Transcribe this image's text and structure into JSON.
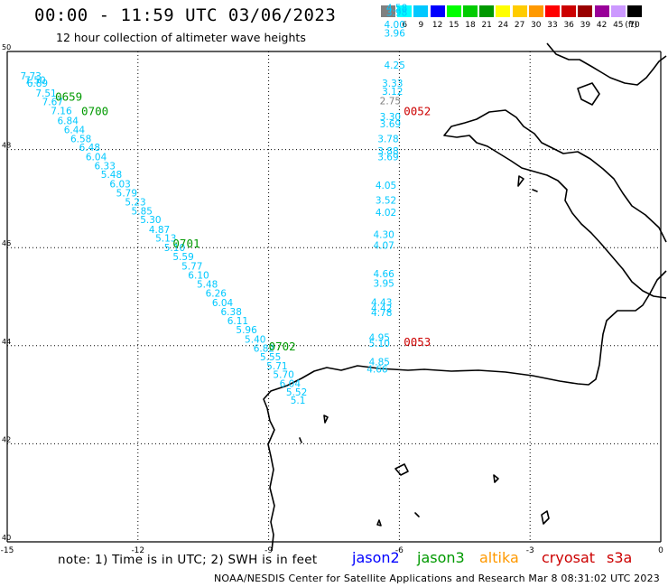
{
  "title": "00:00 - 11:59 UTC 03/06/2023",
  "subtitle": "12 hour collection of altimeter wave heights",
  "legend": {
    "unit": "(ft)",
    "bins": [
      {
        "label": "3",
        "color": "#808080"
      },
      {
        "label": "6",
        "color": "#00ffff"
      },
      {
        "label": "9",
        "color": "#00c8ff"
      },
      {
        "label": "12",
        "color": "#0000ff"
      },
      {
        "label": "15",
        "color": "#00ff00"
      },
      {
        "label": "18",
        "color": "#00cc00"
      },
      {
        "label": "21",
        "color": "#009900"
      },
      {
        "label": "24",
        "color": "#ffff00"
      },
      {
        "label": "27",
        "color": "#ffcc00"
      },
      {
        "label": "30",
        "color": "#ff9900"
      },
      {
        "label": "33",
        "color": "#ff0000"
      },
      {
        "label": "36",
        "color": "#cc0000"
      },
      {
        "label": "39",
        "color": "#990000"
      },
      {
        "label": "42",
        "color": "#990099"
      },
      {
        "label": "45",
        "color": "#cc99ff"
      },
      {
        "label": "70",
        "color": "#000000"
      }
    ]
  },
  "axes": {
    "lon_ticks": [
      "-15",
      "-12",
      "-9",
      "-6",
      "-3",
      "0"
    ],
    "lat_ticks": [
      "50",
      "48",
      "46",
      "44",
      "42",
      "40"
    ],
    "lon_range": [
      -15,
      0
    ],
    "lat_range": [
      40,
      50
    ],
    "grid": true
  },
  "tracks": [
    {
      "satellite": "jason3",
      "times": [
        {
          "label": "0659",
          "lon": -13.9,
          "lat": 49.0
        },
        {
          "label": "0700",
          "lon": -13.3,
          "lat": 48.7
        },
        {
          "label": "0701",
          "lon": -11.2,
          "lat": 46.0
        },
        {
          "label": "0702",
          "lon": -9.0,
          "lat": 43.9
        }
      ],
      "points": [
        {
          "lon": -14.7,
          "lat": 49.43,
          "v": "7.73"
        },
        {
          "lon": -14.6,
          "lat": 49.35,
          "v": "7.50"
        },
        {
          "lon": -14.55,
          "lat": 49.28,
          "v": "6.89"
        },
        {
          "lon": -14.35,
          "lat": 49.08,
          "v": "7.51"
        },
        {
          "lon": -14.2,
          "lat": 48.9,
          "v": "7.67"
        },
        {
          "lon": -14.0,
          "lat": 48.72,
          "v": "7.16"
        },
        {
          "lon": -13.85,
          "lat": 48.52,
          "v": "6.84"
        },
        {
          "lon": -13.7,
          "lat": 48.33,
          "v": "6.44"
        },
        {
          "lon": -13.55,
          "lat": 48.15,
          "v": "6.58"
        },
        {
          "lon": -13.35,
          "lat": 47.97,
          "v": "6.48"
        },
        {
          "lon": -13.2,
          "lat": 47.78,
          "v": "6.04"
        },
        {
          "lon": -13.0,
          "lat": 47.6,
          "v": "6.33"
        },
        {
          "lon": -12.85,
          "lat": 47.42,
          "v": "5.48"
        },
        {
          "lon": -12.65,
          "lat": 47.23,
          "v": "6.03"
        },
        {
          "lon": -12.5,
          "lat": 47.04,
          "v": "5.79"
        },
        {
          "lon": -12.3,
          "lat": 46.86,
          "v": "5.23"
        },
        {
          "lon": -12.15,
          "lat": 46.68,
          "v": "5.85"
        },
        {
          "lon": -11.95,
          "lat": 46.5,
          "v": "5.30"
        },
        {
          "lon": -11.75,
          "lat": 46.3,
          "v": "4.87"
        },
        {
          "lon": -11.6,
          "lat": 46.12,
          "v": "5.13"
        },
        {
          "lon": -11.4,
          "lat": 45.93,
          "v": "5.10"
        },
        {
          "lon": -11.2,
          "lat": 45.75,
          "v": "5.59"
        },
        {
          "lon": -11.0,
          "lat": 45.55,
          "v": "5.77"
        },
        {
          "lon": -10.85,
          "lat": 45.37,
          "v": "6.10"
        },
        {
          "lon": -10.65,
          "lat": 45.18,
          "v": "5.48"
        },
        {
          "lon": -10.45,
          "lat": 45.0,
          "v": "6.26"
        },
        {
          "lon": -10.3,
          "lat": 44.81,
          "v": "6.04"
        },
        {
          "lon": -10.1,
          "lat": 44.62,
          "v": "6.38"
        },
        {
          "lon": -9.95,
          "lat": 44.44,
          "v": "6.11"
        },
        {
          "lon": -9.75,
          "lat": 44.25,
          "v": "5.96"
        },
        {
          "lon": -9.55,
          "lat": 44.06,
          "v": "5.40"
        },
        {
          "lon": -9.35,
          "lat": 43.88,
          "v": "6.82"
        },
        {
          "lon": -9.2,
          "lat": 43.7,
          "v": "5.55"
        },
        {
          "lon": -9.05,
          "lat": 43.52,
          "v": "5.71"
        },
        {
          "lon": -8.9,
          "lat": 43.34,
          "v": "5.70"
        },
        {
          "lon": -8.75,
          "lat": 43.16,
          "v": "6.04"
        },
        {
          "lon": -8.6,
          "lat": 42.98,
          "v": "5.52"
        },
        {
          "lon": -8.5,
          "lat": 42.82,
          "v": "5.1"
        }
      ]
    },
    {
      "satellite": "s3a",
      "times": [
        {
          "label": "0052",
          "lon": -5.9,
          "lat": 48.7
        },
        {
          "label": "0053",
          "lon": -5.9,
          "lat": 44.0
        }
      ],
      "points": [
        {
          "lon": -6.3,
          "lat": 50.82,
          "v": "4.58"
        },
        {
          "lon": -6.3,
          "lat": 50.73,
          "v": "3.98"
        },
        {
          "lon": -6.35,
          "lat": 50.48,
          "v": "4.00"
        },
        {
          "lon": -6.35,
          "lat": 50.3,
          "v": "3.96"
        },
        {
          "lon": -6.35,
          "lat": 49.65,
          "v": "4.25"
        },
        {
          "lon": -6.4,
          "lat": 49.28,
          "v": "3.33"
        },
        {
          "lon": -6.4,
          "lat": 49.12,
          "v": "3.12"
        },
        {
          "lon": -6.45,
          "lat": 48.92,
          "v": "2.75",
          "gray": true
        },
        {
          "lon": -6.45,
          "lat": 48.6,
          "v": "3.30"
        },
        {
          "lon": -6.45,
          "lat": 48.45,
          "v": "3.69"
        },
        {
          "lon": -6.5,
          "lat": 48.15,
          "v": "3.78"
        },
        {
          "lon": -6.5,
          "lat": 47.9,
          "v": "3.88"
        },
        {
          "lon": -6.5,
          "lat": 47.78,
          "v": "3.69"
        },
        {
          "lon": -6.55,
          "lat": 47.2,
          "v": "4.05"
        },
        {
          "lon": -6.55,
          "lat": 46.9,
          "v": "3.52"
        },
        {
          "lon": -6.55,
          "lat": 46.65,
          "v": "4.02"
        },
        {
          "lon": -6.6,
          "lat": 46.2,
          "v": "4.30"
        },
        {
          "lon": -6.6,
          "lat": 45.98,
          "v": "4.07"
        },
        {
          "lon": -6.6,
          "lat": 45.4,
          "v": "4.66"
        },
        {
          "lon": -6.6,
          "lat": 45.2,
          "v": "3.95"
        },
        {
          "lon": -6.65,
          "lat": 44.82,
          "v": "4.43"
        },
        {
          "lon": -6.65,
          "lat": 44.7,
          "v": "4.42"
        },
        {
          "lon": -6.65,
          "lat": 44.6,
          "v": "4.78"
        },
        {
          "lon": -6.7,
          "lat": 44.1,
          "v": "4.95"
        },
        {
          "lon": -6.7,
          "lat": 43.98,
          "v": "5.10"
        },
        {
          "lon": -6.7,
          "lat": 43.6,
          "v": "4.85"
        },
        {
          "lon": -6.75,
          "lat": 43.45,
          "v": "4.66"
        }
      ]
    }
  ],
  "note": "note:  1) Time is in UTC;  2) SWH is in feet",
  "satellites": [
    {
      "name": "jason2",
      "color": "#0000ff"
    },
    {
      "name": "jason3",
      "color": "#009900"
    },
    {
      "name": "altika",
      "color": "#ff9900"
    },
    {
      "name": "cryosat",
      "color": "#cc0000"
    },
    {
      "name": "s3a",
      "color": "#cc0000"
    }
  ],
  "credit": "NOAA/NESDIS Center for Satellite Applications and Research   Mar  8 08:31:02 UTC 2023"
}
